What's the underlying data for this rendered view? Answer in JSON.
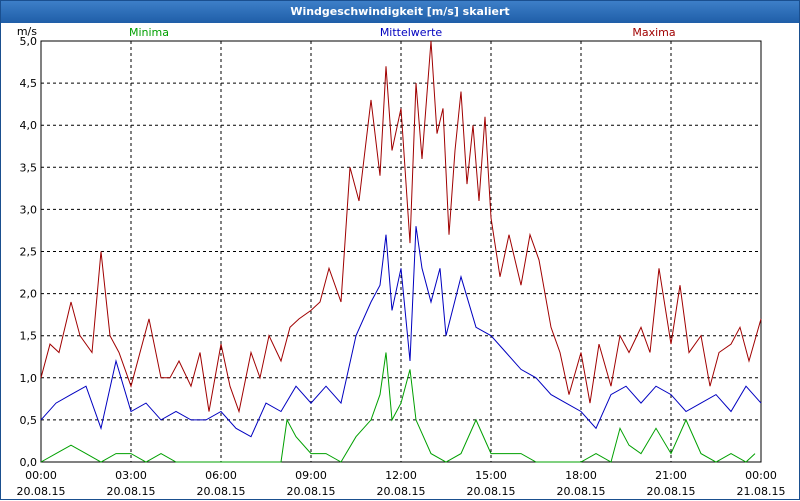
{
  "window": {
    "title": "Windgeschwindigkeit [m/s] skaliert"
  },
  "chart_data": {
    "type": "line",
    "title": "Windgeschwindigkeit [m/s] skaliert",
    "ylabel": "m/s",
    "xlabel": "",
    "ylim": [
      0,
      5.0
    ],
    "yticks": [
      "0,0",
      "0,5",
      "1,0",
      "1,5",
      "2,0",
      "2,5",
      "3,0",
      "3,5",
      "4,0",
      "4,5",
      "5,0"
    ],
    "xlim": [
      0,
      24
    ],
    "xticks": [
      {
        "time": "00:00",
        "date": "20.08.15"
      },
      {
        "time": "03:00",
        "date": "20.08.15"
      },
      {
        "time": "06:00",
        "date": "20.08.15"
      },
      {
        "time": "09:00",
        "date": "20.08.15"
      },
      {
        "time": "12:00",
        "date": "20.08.15"
      },
      {
        "time": "15:00",
        "date": "20.08.15"
      },
      {
        "time": "18:00",
        "date": "20.08.15"
      },
      {
        "time": "21:00",
        "date": "20.08.15"
      },
      {
        "time": "00:00",
        "date": "21.08.15"
      }
    ],
    "grid": true,
    "legend_placement": "top",
    "series": [
      {
        "name": "Minima",
        "color": "#00a000",
        "x": [
          0,
          0.5,
          1,
          1.5,
          2,
          2.5,
          3,
          3.5,
          4,
          4.5,
          5,
          5.5,
          6,
          6.5,
          7,
          7.5,
          8,
          8.2,
          8.5,
          9,
          9.5,
          10,
          10.5,
          11,
          11.3,
          11.5,
          11.7,
          12,
          12.3,
          12.5,
          13,
          13.5,
          14,
          14.5,
          15,
          15.5,
          16,
          16.5,
          17,
          17.5,
          18,
          18.5,
          19,
          19.3,
          19.6,
          20,
          20.5,
          21,
          21.5,
          22,
          22.5,
          23,
          23.5,
          23.8
        ],
        "y": [
          0,
          0.1,
          0.2,
          0.1,
          0,
          0.1,
          0.1,
          0,
          0.1,
          0,
          0,
          0,
          0,
          0,
          0,
          0,
          0,
          0.5,
          0.3,
          0.1,
          0.1,
          0,
          0.3,
          0.5,
          0.8,
          1.3,
          0.5,
          0.7,
          1.1,
          0.5,
          0.1,
          0,
          0.1,
          0.5,
          0.1,
          0.1,
          0.1,
          0,
          0,
          0,
          0,
          0.1,
          0,
          0.4,
          0.2,
          0.1,
          0.4,
          0.1,
          0.5,
          0.1,
          0,
          0.1,
          0,
          0.1
        ]
      },
      {
        "name": "Mittelwerte",
        "color": "#0000c0",
        "x": [
          0,
          0.5,
          1,
          1.5,
          2,
          2.5,
          3,
          3.5,
          4,
          4.5,
          5,
          5.5,
          6,
          6.5,
          7,
          7.5,
          8,
          8.5,
          9,
          9.5,
          10,
          10.5,
          11,
          11.3,
          11.5,
          11.7,
          12,
          12.3,
          12.5,
          12.7,
          13,
          13.3,
          13.5,
          14,
          14.5,
          15,
          15.5,
          16,
          16.5,
          17,
          17.5,
          18,
          18.5,
          19,
          19.5,
          20,
          20.5,
          21,
          21.5,
          22,
          22.5,
          23,
          23.5,
          24
        ],
        "y": [
          0.5,
          0.7,
          0.8,
          0.9,
          0.4,
          1.2,
          0.6,
          0.7,
          0.5,
          0.6,
          0.5,
          0.5,
          0.6,
          0.4,
          0.3,
          0.7,
          0.6,
          0.9,
          0.7,
          0.9,
          0.7,
          1.5,
          1.9,
          2.1,
          2.7,
          1.8,
          2.3,
          1.2,
          2.8,
          2.3,
          1.9,
          2.3,
          1.5,
          2.2,
          1.6,
          1.5,
          1.3,
          1.1,
          1.0,
          0.8,
          0.7,
          0.6,
          0.4,
          0.8,
          0.9,
          0.7,
          0.9,
          0.8,
          0.6,
          0.7,
          0.8,
          0.6,
          0.9,
          0.7
        ]
      },
      {
        "name": "Maxima",
        "color": "#a00000",
        "x": [
          0,
          0.3,
          0.6,
          1,
          1.3,
          1.7,
          2,
          2.3,
          2.6,
          3,
          3.3,
          3.6,
          4,
          4.3,
          4.6,
          5,
          5.3,
          5.6,
          6,
          6.3,
          6.6,
          7,
          7.3,
          7.6,
          8,
          8.3,
          8.6,
          9,
          9.3,
          9.6,
          10,
          10.3,
          10.6,
          11,
          11.3,
          11.5,
          11.7,
          12,
          12.3,
          12.5,
          12.7,
          13,
          13.2,
          13.4,
          13.6,
          13.8,
          14,
          14.2,
          14.4,
          14.6,
          14.8,
          15,
          15.3,
          15.6,
          16,
          16.3,
          16.6,
          17,
          17.3,
          17.6,
          18,
          18.3,
          18.6,
          19,
          19.3,
          19.6,
          20,
          20.3,
          20.6,
          21,
          21.3,
          21.6,
          22,
          22.3,
          22.6,
          23,
          23.3,
          23.6,
          24
        ],
        "y": [
          1.0,
          1.4,
          1.3,
          1.9,
          1.5,
          1.3,
          2.5,
          1.5,
          1.3,
          0.9,
          1.3,
          1.7,
          1.0,
          1.0,
          1.2,
          0.9,
          1.3,
          0.6,
          1.4,
          0.9,
          0.6,
          1.3,
          1.0,
          1.5,
          1.2,
          1.6,
          1.7,
          1.8,
          1.9,
          2.3,
          1.9,
          3.5,
          3.1,
          4.3,
          3.4,
          4.7,
          3.7,
          4.2,
          2.6,
          4.5,
          3.6,
          5.0,
          3.9,
          4.2,
          2.7,
          3.7,
          4.4,
          3.3,
          4.0,
          3.1,
          4.1,
          2.9,
          2.2,
          2.7,
          2.1,
          2.7,
          2.4,
          1.6,
          1.3,
          0.8,
          1.3,
          0.7,
          1.4,
          0.9,
          1.5,
          1.3,
          1.6,
          1.3,
          2.3,
          1.4,
          2.1,
          1.3,
          1.5,
          0.9,
          1.3,
          1.4,
          1.6,
          1.2,
          1.7
        ]
      }
    ]
  }
}
